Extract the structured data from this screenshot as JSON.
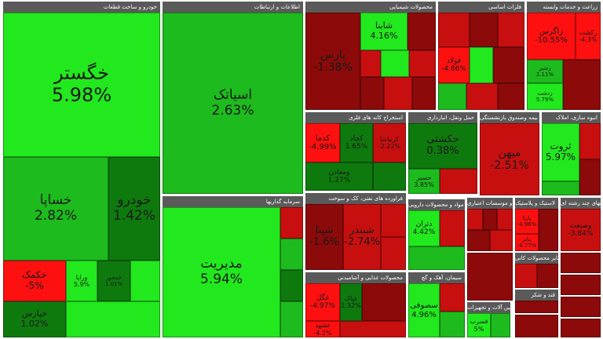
{
  "colors": {
    "bright_green": "#22e81e",
    "mid_green": "#1dbb1d",
    "dark_green": "#0e7a0e",
    "bright_red": "#ff1010",
    "mid_red": "#c80f0f",
    "dark_red": "#8c0a0a",
    "header_bg": "#5a5a5a",
    "gap": "#ffffff"
  },
  "chart_data": {
    "type": "treemap",
    "sectors": [
      {
        "id": "s-auto",
        "title": "خودرو و ساخت قطعات",
        "tiles": [
          {
            "name": "خگستر",
            "change": "5.98%",
            "value": 5.98
          },
          {
            "name": "خساپا",
            "change": "2.82%",
            "value": 2.82
          },
          {
            "name": "خودرو",
            "change": "1.42%",
            "value": 1.42
          },
          {
            "name": "خکمک",
            "change": "-5%",
            "value": -5
          },
          {
            "name": "خپارس",
            "change": "1.02%",
            "value": 1.02
          },
          {
            "name": "وراپا",
            "change": "5.9%",
            "value": 5.9
          },
          {
            "name": "خمحور",
            "change": "1.01%",
            "value": 1.01
          },
          {
            "name": "",
            "change": "",
            "value": 4.4
          },
          {
            "name": "",
            "change": "",
            "value": 4.2
          }
        ]
      },
      {
        "id": "s-ict",
        "title": "اطلاعات و ارتباطات",
        "tiles": [
          {
            "name": "اسیاتک",
            "change": "2.63%",
            "value": 2.63
          }
        ]
      },
      {
        "id": "s-capital",
        "title": "سرمایه گذاریها",
        "tiles": [
          {
            "name": "مدیریت",
            "change": "5.94%",
            "value": 5.94
          }
        ]
      },
      {
        "id": "s-chem",
        "title": "محصولات شیمیایی",
        "tiles": [
          {
            "name": "پارس",
            "change": "-1.38%",
            "value": -1.38
          },
          {
            "name": "شاینا",
            "change": "4.16%",
            "value": 4.16
          }
        ]
      },
      {
        "id": "s-metals",
        "title": "فلزات اساسی",
        "tiles": [
          {
            "name": "فولاد",
            "change": "-4.86%",
            "value": -4.86
          }
        ]
      },
      {
        "id": "s-agri",
        "title": "زراعت و خدمات وابسته",
        "tiles": [
          {
            "name": "زاگرس",
            "change": "-10.55%",
            "value": -10.55
          },
          {
            "name": "زکشت",
            "change": "-4.3%",
            "value": -4.3
          },
          {
            "name": "زشیر",
            "change": "2.11%",
            "value": 2.11
          },
          {
            "name": "زدشت",
            "change": "5.79%",
            "value": 5.79
          }
        ]
      },
      {
        "id": "s-mining",
        "title": "استخراج کانه های فلزی",
        "tiles": [
          {
            "name": "کدما",
            "change": "-4.99%",
            "value": -4.99
          },
          {
            "name": "کچاد",
            "change": "1.65%",
            "value": 1.65
          },
          {
            "name": "کرماشا",
            "change": "-2.22%",
            "value": -2.22
          },
          {
            "name": "ومعادن",
            "change": "1.27%",
            "value": 1.27
          }
        ]
      },
      {
        "id": "s-transport",
        "title": "حمل ونقل، انبارداری",
        "tiles": [
          {
            "name": "حکشتی",
            "change": "0.38%",
            "value": 0.38
          },
          {
            "name": "حسیر",
            "change": "3.85%",
            "value": 3.85
          }
        ]
      },
      {
        "id": "s-insurance",
        "title": "بیمه وصندوق بازنشستگی",
        "tiles": [
          {
            "name": "میهن",
            "change": "-2.51%",
            "value": -2.51
          }
        ]
      },
      {
        "id": "s-construction",
        "title": "انبوه سازی، املاک",
        "tiles": [
          {
            "name": "ثروت",
            "change": "5.97%",
            "value": 5.97
          }
        ]
      },
      {
        "id": "s-refinery",
        "title": "فراورده های نفتی، کک و سوخت",
        "tiles": [
          {
            "name": "شپنا",
            "change": "-1.6%",
            "value": -1.6
          },
          {
            "name": "شبندر",
            "change": "-2.74%",
            "value": -2.74
          }
        ]
      },
      {
        "id": "s-food",
        "title": "محصولات غذایی و آشامیدنی",
        "tiles": [
          {
            "name": "غگل",
            "change": "-4.97%",
            "value": -4.97
          },
          {
            "name": "غپاک",
            "change": "1.32%",
            "value": 1.32
          },
          {
            "name": "غشهد",
            "change": "-4.2%",
            "value": -4.2
          }
        ]
      },
      {
        "id": "s-materials",
        "title": "مواد و محصولات دارویی",
        "tiles": [
          {
            "name": "دتران",
            "change": "4.42%",
            "value": 4.42
          }
        ]
      },
      {
        "id": "s-cement",
        "title": "سیمان، آهک و گچ",
        "tiles": [
          {
            "name": "سصوفی",
            "change": "4.96%",
            "value": 4.96
          }
        ]
      },
      {
        "id": "s-banks",
        "title": "بانکها و موسسات اعتباری",
        "tiles": []
      },
      {
        "id": "s-rubber",
        "title": "لاستیک و پلاستیک",
        "tiles": [
          {
            "name": "پارتا",
            "change": "-4.96%",
            "value": -4.96
          },
          {
            "name": "پتایر",
            "change": "-4.77%",
            "value": -4.77
          }
        ]
      },
      {
        "id": "s-holding",
        "title": "شرکتهای چند رشته ای",
        "tiles": [
          {
            "name": "وصنعت",
            "change": "-3.84%",
            "value": -3.84
          }
        ]
      },
      {
        "id": "s-mach",
        "title": "ماشین آلات و تجهیزات",
        "tiles": [
          {
            "name": "فسرب",
            "change": "5%",
            "value": 5
          }
        ]
      },
      {
        "id": "s-other",
        "title": "سایر محصولات کانی",
        "tiles": []
      },
      {
        "id": "s-sugar",
        "title": "قند و شکر",
        "tiles": []
      }
    ]
  }
}
